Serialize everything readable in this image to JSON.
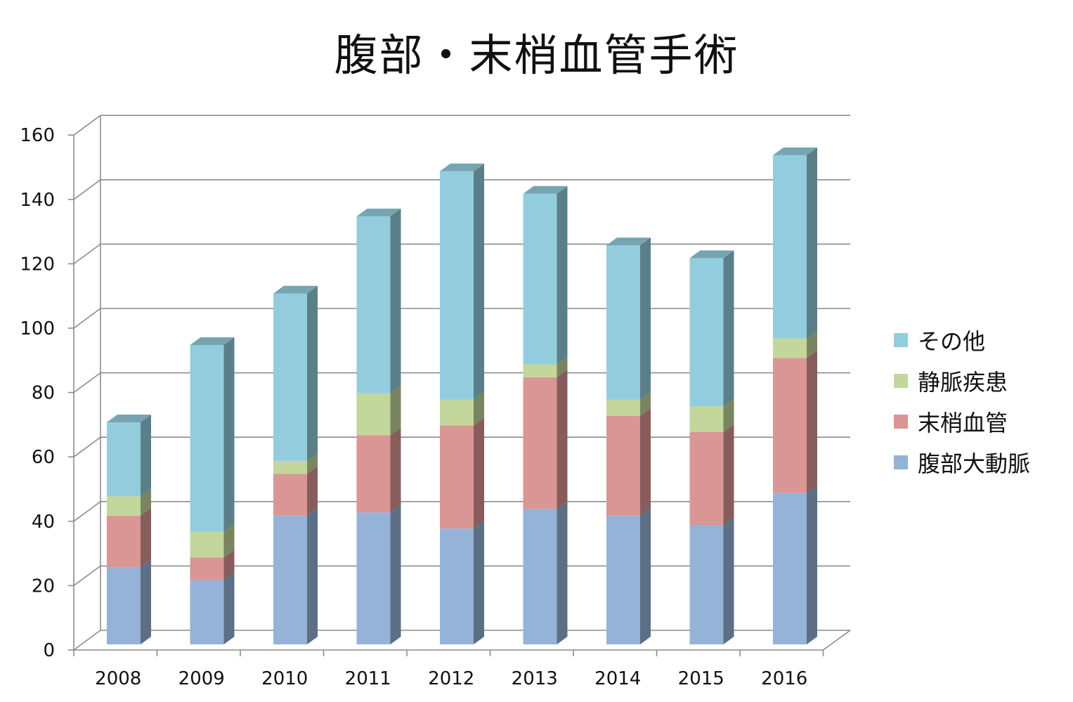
{
  "chart_data": {
    "type": "bar",
    "stacked": true,
    "three_d": true,
    "title": "腹部・末梢血管手術",
    "categories": [
      "2008",
      "2009",
      "2010",
      "2011",
      "2012",
      "2013",
      "2014",
      "2015",
      "2016"
    ],
    "series": [
      {
        "name": "腹部大動脈",
        "color": "#95b3d7",
        "values": [
          24,
          20,
          40,
          41,
          36,
          42,
          40,
          37,
          47
        ]
      },
      {
        "name": "末梢血管",
        "color": "#d99694",
        "values": [
          16,
          7,
          13,
          24,
          32,
          41,
          31,
          29,
          42
        ]
      },
      {
        "name": "静脈疾患",
        "color": "#c3d69b",
        "values": [
          6,
          8,
          4,
          13,
          8,
          4,
          5,
          8,
          6
        ]
      },
      {
        "name": "その他",
        "color": "#93cddd",
        "values": [
          23,
          58,
          52,
          55,
          71,
          53,
          48,
          46,
          57
        ]
      }
    ],
    "ylim": [
      0,
      160
    ],
    "yticks": [
      "0",
      "20",
      "40",
      "60",
      "80",
      "100",
      "120",
      "140",
      "160"
    ],
    "grid": true,
    "legend_position": "right",
    "legend_order": [
      "その他",
      "静脈疾患",
      "末梢血管",
      "腹部大動脈"
    ]
  }
}
